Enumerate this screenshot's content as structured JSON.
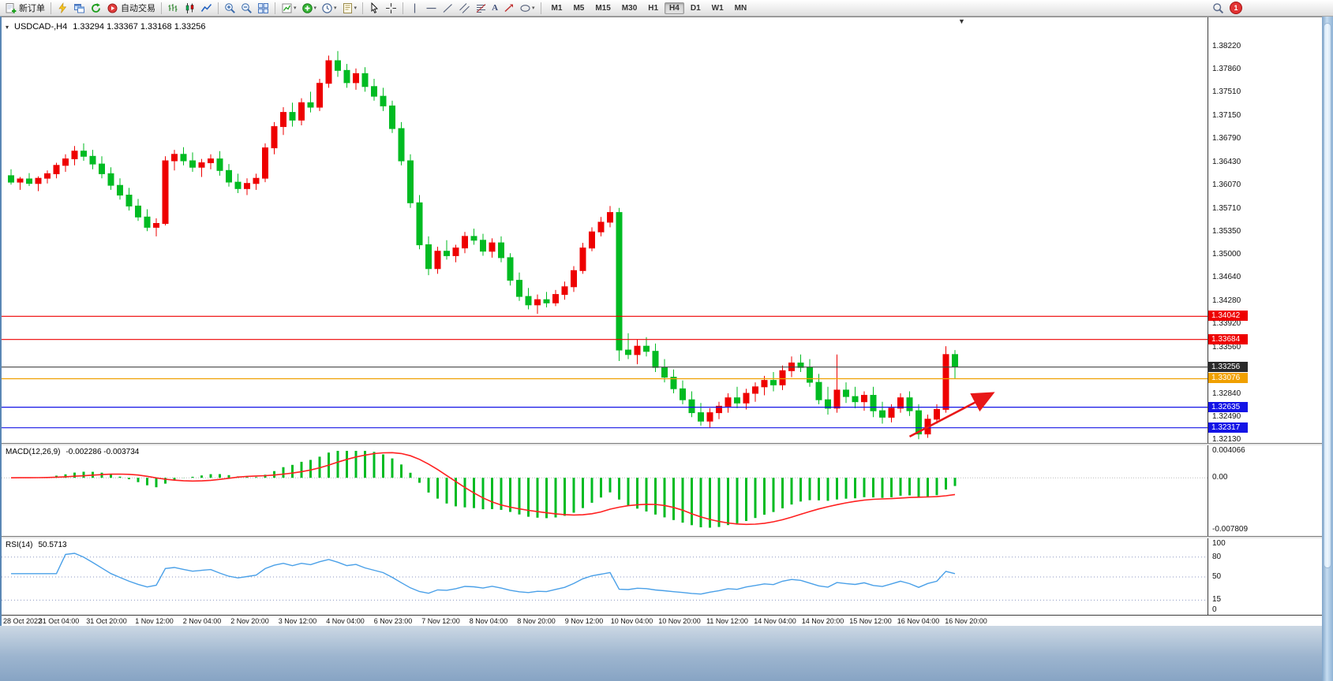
{
  "toolbar": {
    "new_order_label": "新订单",
    "autotrading_label": "自动交易",
    "timeframes": [
      "M1",
      "M5",
      "M15",
      "M30",
      "H1",
      "H4",
      "D1",
      "W1",
      "MN"
    ],
    "active_timeframe": "H4",
    "notification_count": "1",
    "icon_glyphs": {
      "dropdown-caret": "▾",
      "chart-shift-marker": "▼",
      "symbol-dropdown": "▾",
      "text-tool": "A"
    }
  },
  "chart_header": {
    "symbol_period": "USDCAD-,H4",
    "ohlc": "1.33294 1.33367 1.33168 1.33256"
  },
  "panels": {
    "macd": {
      "label": "MACD(12,26,9)",
      "values": "-0.002286 -0.003734"
    },
    "rsi": {
      "label": "RSI(14)",
      "values": "50.5713"
    }
  },
  "chart_data": {
    "type": "candlestick",
    "symbol": "USDCAD-",
    "period": "H4",
    "bull_color": "#ee0000",
    "bear_color": "#00bb22",
    "price_axis_range": [
      1.3213,
      1.3822
    ],
    "price_axis_labels": [
      "1.38220",
      "1.37860",
      "1.37510",
      "1.37150",
      "1.36790",
      "1.36430",
      "1.36070",
      "1.35710",
      "1.35350",
      "1.35000",
      "1.34640",
      "1.34280",
      "1.33920",
      "1.33560",
      "1.32840",
      "1.32490",
      "1.32130"
    ],
    "time_labels": [
      "28 Oct 2022",
      "31 Oct 04:00",
      "31 Oct 20:00",
      "1 Nov 12:00",
      "2 Nov 04:00",
      "2 Nov 20:00",
      "3 Nov 12:00",
      "4 Nov 04:00",
      "6 Nov 23:00",
      "7 Nov 12:00",
      "8 Nov 04:00",
      "8 Nov 20:00",
      "9 Nov 12:00",
      "10 Nov 04:00",
      "10 Nov 20:00",
      "11 Nov 12:00",
      "14 Nov 04:00",
      "14 Nov 20:00",
      "15 Nov 12:00",
      "16 Nov 04:00",
      "16 Nov 20:00"
    ],
    "levels": [
      {
        "label": "1.34042",
        "value": 1.34042,
        "color": "#ee0000"
      },
      {
        "label": "1.33684",
        "value": 1.33684,
        "color": "#ee0000"
      },
      {
        "label": "1.33256",
        "value": 1.33256,
        "color": "#2a2a2a"
      },
      {
        "label": "1.33076",
        "value": 1.33076,
        "color": "#f0a000"
      },
      {
        "label": "1.32635",
        "value": 1.32635,
        "color": "#1414e6"
      },
      {
        "label": "1.32317",
        "value": 1.32317,
        "color": "#1414e6"
      }
    ],
    "annotation_arrow": {
      "color": "#e81717",
      "from_index": 99,
      "from_price": 1.3218,
      "to_index": 108,
      "to_price": 1.3284
    },
    "candles": [
      [
        1.3622,
        1.3632,
        1.3608,
        1.3612
      ],
      [
        1.3612,
        1.362,
        1.36,
        1.3617
      ],
      [
        1.3617,
        1.3626,
        1.3606,
        1.361
      ],
      [
        1.361,
        1.3621,
        1.3598,
        1.3618
      ],
      [
        1.3618,
        1.363,
        1.361,
        1.3625
      ],
      [
        1.3625,
        1.3642,
        1.3618,
        1.3638
      ],
      [
        1.3638,
        1.3655,
        1.3628,
        1.3648
      ],
      [
        1.3648,
        1.3668,
        1.3638,
        1.366
      ],
      [
        1.366,
        1.3672,
        1.3645,
        1.3652
      ],
      [
        1.3652,
        1.3662,
        1.3632,
        1.364
      ],
      [
        1.364,
        1.3652,
        1.3618,
        1.3625
      ],
      [
        1.3625,
        1.3635,
        1.36,
        1.3607
      ],
      [
        1.3607,
        1.3618,
        1.3585,
        1.3592
      ],
      [
        1.3592,
        1.3603,
        1.3568,
        1.3575
      ],
      [
        1.3575,
        1.3586,
        1.3552,
        1.3558
      ],
      [
        1.3558,
        1.357,
        1.3536,
        1.3542
      ],
      [
        1.3542,
        1.3556,
        1.3528,
        1.3548
      ],
      [
        1.3548,
        1.3652,
        1.3545,
        1.3645
      ],
      [
        1.3645,
        1.3662,
        1.363,
        1.3655
      ],
      [
        1.3655,
        1.3666,
        1.3638,
        1.3645
      ],
      [
        1.3645,
        1.3658,
        1.3628,
        1.3635
      ],
      [
        1.3635,
        1.3648,
        1.362,
        1.3642
      ],
      [
        1.3642,
        1.3655,
        1.3632,
        1.3648
      ],
      [
        1.3648,
        1.366,
        1.3622,
        1.363
      ],
      [
        1.363,
        1.364,
        1.3605,
        1.3612
      ],
      [
        1.3612,
        1.3625,
        1.3595,
        1.3602
      ],
      [
        1.3602,
        1.3618,
        1.3592,
        1.361
      ],
      [
        1.361,
        1.3625,
        1.36,
        1.3618
      ],
      [
        1.3618,
        1.3672,
        1.3612,
        1.3665
      ],
      [
        1.3665,
        1.3705,
        1.3655,
        1.3698
      ],
      [
        1.3698,
        1.3728,
        1.3685,
        1.372
      ],
      [
        1.372,
        1.3735,
        1.3698,
        1.3708
      ],
      [
        1.3708,
        1.3742,
        1.37,
        1.3735
      ],
      [
        1.3735,
        1.3752,
        1.372,
        1.3728
      ],
      [
        1.3728,
        1.3772,
        1.3722,
        1.3765
      ],
      [
        1.3765,
        1.3808,
        1.3758,
        1.38
      ],
      [
        1.38,
        1.3815,
        1.3775,
        1.3785
      ],
      [
        1.3785,
        1.3795,
        1.3758,
        1.3766
      ],
      [
        1.3766,
        1.3788,
        1.3755,
        1.378
      ],
      [
        1.378,
        1.379,
        1.3752,
        1.376
      ],
      [
        1.376,
        1.3772,
        1.3738,
        1.3745
      ],
      [
        1.3745,
        1.3758,
        1.3722,
        1.373
      ],
      [
        1.373,
        1.3738,
        1.3688,
        1.3695
      ],
      [
        1.3695,
        1.3705,
        1.3638,
        1.3645
      ],
      [
        1.3645,
        1.3655,
        1.3572,
        1.358
      ],
      [
        1.358,
        1.3592,
        1.3508,
        1.3515
      ],
      [
        1.3515,
        1.3528,
        1.3468,
        1.3478
      ],
      [
        1.3478,
        1.3512,
        1.347,
        1.3505
      ],
      [
        1.3505,
        1.3522,
        1.3492,
        1.3498
      ],
      [
        1.3498,
        1.3515,
        1.3488,
        1.351
      ],
      [
        1.351,
        1.3535,
        1.3502,
        1.3528
      ],
      [
        1.3528,
        1.354,
        1.3515,
        1.3522
      ],
      [
        1.3522,
        1.3532,
        1.3498,
        1.3505
      ],
      [
        1.3505,
        1.3525,
        1.3495,
        1.3518
      ],
      [
        1.3518,
        1.3528,
        1.3488,
        1.3495
      ],
      [
        1.3495,
        1.3502,
        1.3452,
        1.346
      ],
      [
        1.346,
        1.3472,
        1.3428,
        1.3435
      ],
      [
        1.3435,
        1.3448,
        1.3415,
        1.3422
      ],
      [
        1.3422,
        1.3438,
        1.3408,
        1.343
      ],
      [
        1.343,
        1.3442,
        1.3418,
        1.3425
      ],
      [
        1.3425,
        1.3445,
        1.342,
        1.3438
      ],
      [
        1.3438,
        1.3458,
        1.343,
        1.345
      ],
      [
        1.345,
        1.3482,
        1.3442,
        1.3475
      ],
      [
        1.3475,
        1.3518,
        1.347,
        1.351
      ],
      [
        1.351,
        1.3542,
        1.3505,
        1.3535
      ],
      [
        1.3535,
        1.3558,
        1.3528,
        1.355
      ],
      [
        1.355,
        1.3575,
        1.3542,
        1.3565
      ],
      [
        1.3565,
        1.3572,
        1.3335,
        1.3352
      ],
      [
        1.3352,
        1.3378,
        1.3338,
        1.3345
      ],
      [
        1.3345,
        1.3368,
        1.333,
        1.3358
      ],
      [
        1.3358,
        1.3372,
        1.3342,
        1.335
      ],
      [
        1.335,
        1.3362,
        1.3318,
        1.3325
      ],
      [
        1.3325,
        1.3338,
        1.3302,
        1.331
      ],
      [
        1.331,
        1.3322,
        1.3285,
        1.3292
      ],
      [
        1.3292,
        1.3305,
        1.3268,
        1.3275
      ],
      [
        1.3275,
        1.3288,
        1.3248,
        1.3255
      ],
      [
        1.3255,
        1.327,
        1.3235,
        1.3242
      ],
      [
        1.3242,
        1.3262,
        1.3232,
        1.3255
      ],
      [
        1.3255,
        1.3272,
        1.3245,
        1.3265
      ],
      [
        1.3265,
        1.3285,
        1.3255,
        1.3278
      ],
      [
        1.3278,
        1.3295,
        1.3262,
        1.327
      ],
      [
        1.327,
        1.3292,
        1.326,
        1.3285
      ],
      [
        1.3285,
        1.3302,
        1.3272,
        1.3295
      ],
      [
        1.3295,
        1.3312,
        1.3282,
        1.3305
      ],
      [
        1.3305,
        1.3318,
        1.3288,
        1.3298
      ],
      [
        1.3298,
        1.3328,
        1.329,
        1.332
      ],
      [
        1.332,
        1.3342,
        1.331,
        1.3332
      ],
      [
        1.3332,
        1.3345,
        1.3318,
        1.3325
      ],
      [
        1.3325,
        1.3338,
        1.3295,
        1.3302
      ],
      [
        1.3302,
        1.3315,
        1.3268,
        1.3275
      ],
      [
        1.3275,
        1.3295,
        1.3252,
        1.3262
      ],
      [
        1.3262,
        1.3345,
        1.3255,
        1.329
      ],
      [
        1.329,
        1.3302,
        1.327,
        1.328
      ],
      [
        1.328,
        1.3295,
        1.3262,
        1.3272
      ],
      [
        1.3272,
        1.3288,
        1.3258,
        1.3282
      ],
      [
        1.3282,
        1.3295,
        1.3248,
        1.3258
      ],
      [
        1.3258,
        1.3272,
        1.3238,
        1.3248
      ],
      [
        1.3248,
        1.3268,
        1.324,
        1.3262
      ],
      [
        1.3262,
        1.3285,
        1.3255,
        1.3278
      ],
      [
        1.3278,
        1.3288,
        1.325,
        1.3258
      ],
      [
        1.3258,
        1.3268,
        1.3214,
        1.3222
      ],
      [
        1.3222,
        1.3252,
        1.3216,
        1.3245
      ],
      [
        1.3245,
        1.3268,
        1.3238,
        1.326
      ],
      [
        1.326,
        1.3358,
        1.3255,
        1.3345
      ],
      [
        1.3345,
        1.3352,
        1.3308,
        1.3326
      ]
    ],
    "indicators": {
      "macd": {
        "params": [
          12,
          26,
          9
        ],
        "display": "-0.002286 -0.003734",
        "max": 0.004066,
        "min": -0.007809,
        "axis_labels": [
          {
            "text": "0.004066",
            "value": 0.004066
          },
          {
            "text": "0.00",
            "value": 0
          },
          {
            "text": "-0.007809",
            "value": -0.007809
          }
        ],
        "histogram_color": "#00bb22",
        "signal_color": "#ff2020"
      },
      "rsi": {
        "period": 14,
        "display": "50.5713",
        "axis_labels": [
          {
            "text": "100",
            "value": 100
          },
          {
            "text": "80",
            "value": 80
          },
          {
            "text": "50",
            "value": 50
          },
          {
            "text": "15",
            "value": 15
          },
          {
            "text": "0",
            "value": 0
          }
        ],
        "levels": [
          80,
          50,
          15
        ],
        "line_color": "#4aa0e8"
      }
    }
  }
}
